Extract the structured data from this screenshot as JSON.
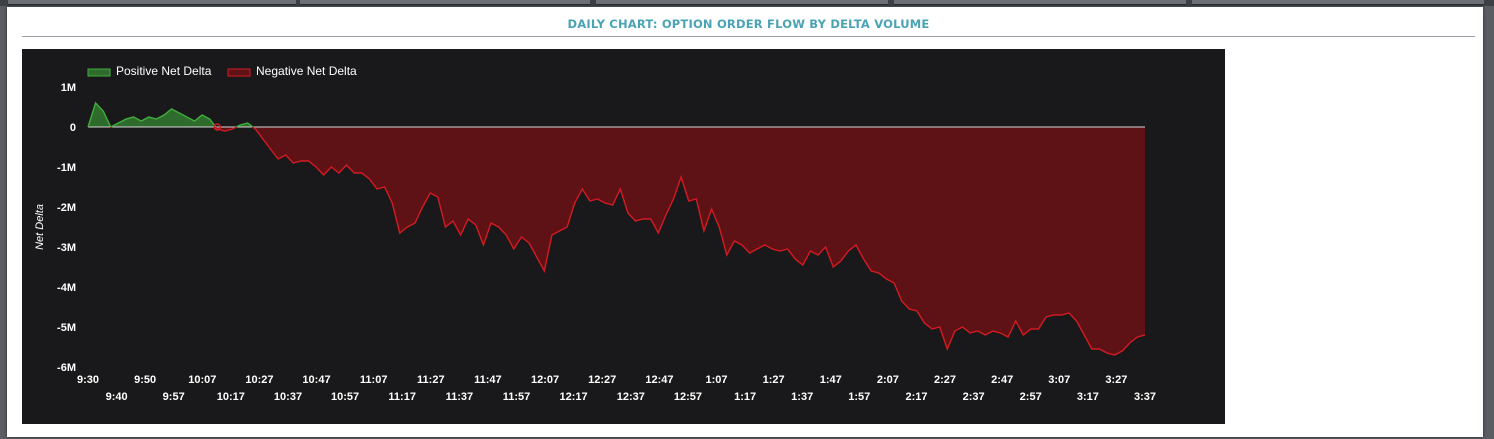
{
  "header": {
    "title": "DAILY CHART: OPTION ORDER FLOW BY DELTA VOLUME"
  },
  "colors": {
    "title": "#4aa3b4",
    "positive_fill": "#2e6b2c",
    "positive_line": "#3fae3c",
    "negative_fill": "#5e1216",
    "negative_line": "#d41a22",
    "chart_bg": "#19191b"
  },
  "chart_data": {
    "type": "area",
    "title": "DAILY CHART: OPTION ORDER FLOW BY DELTA VOLUME",
    "ylabel": "Net Delta",
    "xlabel": "",
    "ylim": [
      -6000000,
      1000000
    ],
    "y_ticks": [
      "1M",
      "0",
      "-1M",
      "-2M",
      "-3M",
      "-4M",
      "-5M",
      "-6M"
    ],
    "y_tick_values": [
      1000000,
      0,
      -1000000,
      -2000000,
      -3000000,
      -4000000,
      -5000000,
      -6000000
    ],
    "x_ticks_top": [
      "9:30",
      "9:50",
      "10:07",
      "10:27",
      "10:47",
      "11:07",
      "11:27",
      "11:47",
      "12:07",
      "12:27",
      "12:47",
      "1:07",
      "1:27",
      "1:47",
      "2:07",
      "2:27",
      "2:47",
      "3:07",
      "3:27"
    ],
    "x_ticks_bottom": [
      "9:40",
      "9:57",
      "10:17",
      "10:37",
      "10:57",
      "11:17",
      "11:37",
      "11:57",
      "12:17",
      "12:37",
      "12:57",
      "1:17",
      "1:37",
      "1:57",
      "2:17",
      "2:37",
      "2:57",
      "3:17",
      "3:37"
    ],
    "grid": false,
    "legend_position": "top-left",
    "series": [
      {
        "name": "Positive Net Delta",
        "color": "#3fae3c"
      },
      {
        "name": "Negative Net Delta",
        "color": "#d41a22"
      }
    ],
    "points": [
      [
        0,
        0
      ],
      [
        1,
        600000
      ],
      [
        2,
        400000
      ],
      [
        3,
        0
      ],
      [
        4,
        100000
      ],
      [
        5,
        200000
      ],
      [
        6,
        250000
      ],
      [
        7,
        150000
      ],
      [
        8,
        250000
      ],
      [
        9,
        200000
      ],
      [
        10,
        300000
      ],
      [
        11,
        450000
      ],
      [
        12,
        350000
      ],
      [
        13,
        250000
      ],
      [
        14,
        150000
      ],
      [
        15,
        300000
      ],
      [
        16,
        200000
      ],
      [
        17,
        -50000
      ],
      [
        18,
        -100000
      ],
      [
        19,
        -50000
      ],
      [
        20,
        50000
      ],
      [
        21,
        100000
      ],
      [
        22,
        -50000
      ],
      [
        23,
        -300000
      ],
      [
        24,
        -550000
      ],
      [
        25,
        -800000
      ],
      [
        26,
        -700000
      ],
      [
        27,
        -900000
      ],
      [
        28,
        -850000
      ],
      [
        29,
        -850000
      ],
      [
        30,
        -1000000
      ],
      [
        31,
        -1200000
      ],
      [
        32,
        -1000000
      ],
      [
        33,
        -1150000
      ],
      [
        34,
        -950000
      ],
      [
        35,
        -1150000
      ],
      [
        36,
        -1150000
      ],
      [
        37,
        -1300000
      ],
      [
        38,
        -1550000
      ],
      [
        39,
        -1500000
      ],
      [
        40,
        -1900000
      ],
      [
        41,
        -2650000
      ],
      [
        42,
        -2500000
      ],
      [
        43,
        -2400000
      ],
      [
        44,
        -2000000
      ],
      [
        45,
        -1650000
      ],
      [
        46,
        -1750000
      ],
      [
        47,
        -2500000
      ],
      [
        48,
        -2350000
      ],
      [
        49,
        -2700000
      ],
      [
        50,
        -2300000
      ],
      [
        51,
        -2450000
      ],
      [
        52,
        -2950000
      ],
      [
        53,
        -2400000
      ],
      [
        54,
        -2500000
      ],
      [
        55,
        -2700000
      ],
      [
        56,
        -3050000
      ],
      [
        57,
        -2750000
      ],
      [
        58,
        -2900000
      ],
      [
        59,
        -3250000
      ],
      [
        60,
        -3600000
      ],
      [
        61,
        -2700000
      ],
      [
        62,
        -2600000
      ],
      [
        63,
        -2500000
      ],
      [
        64,
        -1900000
      ],
      [
        65,
        -1550000
      ],
      [
        66,
        -1850000
      ],
      [
        67,
        -1800000
      ],
      [
        68,
        -1900000
      ],
      [
        69,
        -1950000
      ],
      [
        70,
        -1550000
      ],
      [
        71,
        -2150000
      ],
      [
        72,
        -2350000
      ],
      [
        73,
        -2300000
      ],
      [
        74,
        -2300000
      ],
      [
        75,
        -2650000
      ],
      [
        76,
        -2200000
      ],
      [
        77,
        -1800000
      ],
      [
        78,
        -1250000
      ],
      [
        79,
        -1850000
      ],
      [
        80,
        -1800000
      ],
      [
        81,
        -2600000
      ],
      [
        82,
        -2050000
      ],
      [
        83,
        -2500000
      ],
      [
        84,
        -3200000
      ],
      [
        85,
        -2850000
      ],
      [
        86,
        -2950000
      ],
      [
        87,
        -3150000
      ],
      [
        88,
        -3050000
      ],
      [
        89,
        -2950000
      ],
      [
        90,
        -3050000
      ],
      [
        91,
        -3100000
      ],
      [
        92,
        -3050000
      ],
      [
        93,
        -3300000
      ],
      [
        94,
        -3450000
      ],
      [
        95,
        -3100000
      ],
      [
        96,
        -3200000
      ],
      [
        97,
        -3000000
      ],
      [
        98,
        -3500000
      ],
      [
        99,
        -3350000
      ],
      [
        100,
        -3100000
      ],
      [
        101,
        -2950000
      ],
      [
        102,
        -3300000
      ],
      [
        103,
        -3600000
      ],
      [
        104,
        -3650000
      ],
      [
        105,
        -3800000
      ],
      [
        106,
        -3900000
      ],
      [
        107,
        -4350000
      ],
      [
        108,
        -4550000
      ],
      [
        109,
        -4600000
      ],
      [
        110,
        -4900000
      ],
      [
        111,
        -5050000
      ],
      [
        112,
        -5000000
      ],
      [
        113,
        -5550000
      ],
      [
        114,
        -5100000
      ],
      [
        115,
        -5000000
      ],
      [
        116,
        -5150000
      ],
      [
        117,
        -5100000
      ],
      [
        118,
        -5200000
      ],
      [
        119,
        -5100000
      ],
      [
        120,
        -5150000
      ],
      [
        121,
        -5250000
      ],
      [
        122,
        -4850000
      ],
      [
        123,
        -5200000
      ],
      [
        124,
        -5050000
      ],
      [
        125,
        -5050000
      ],
      [
        126,
        -4750000
      ],
      [
        127,
        -4700000
      ],
      [
        128,
        -4700000
      ],
      [
        129,
        -4650000
      ],
      [
        130,
        -4850000
      ],
      [
        131,
        -5200000
      ],
      [
        132,
        -5550000
      ],
      [
        133,
        -5550000
      ],
      [
        134,
        -5650000
      ],
      [
        135,
        -5700000
      ],
      [
        136,
        -5600000
      ],
      [
        137,
        -5400000
      ],
      [
        138,
        -5250000
      ],
      [
        139,
        -5200000
      ]
    ]
  }
}
